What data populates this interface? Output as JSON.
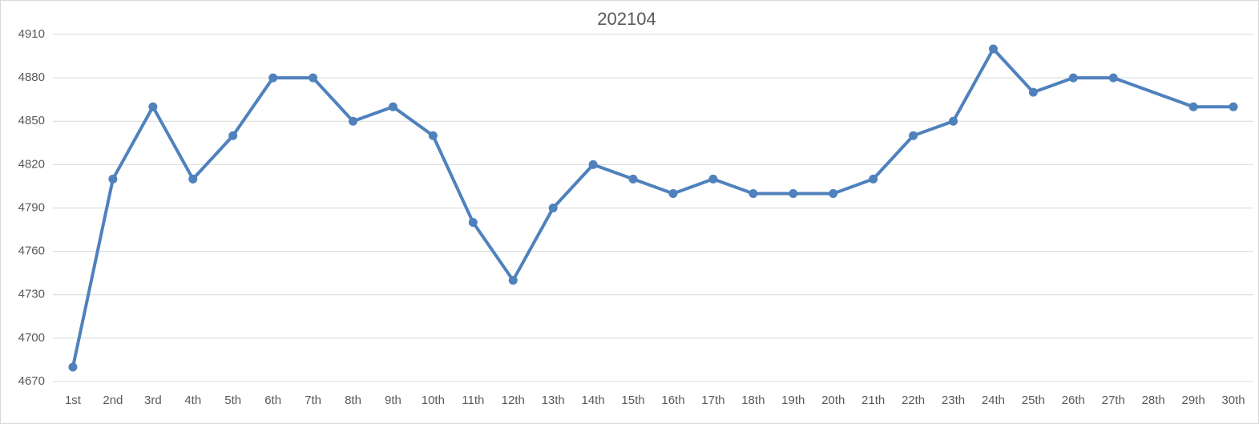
{
  "chart_data": {
    "type": "line",
    "title": "202104",
    "categories": [
      "1st",
      "2nd",
      "3rd",
      "4th",
      "5th",
      "6th",
      "7th",
      "8th",
      "9th",
      "10th",
      "11th",
      "12th",
      "13th",
      "14th",
      "15th",
      "16th",
      "17th",
      "18th",
      "19th",
      "20th",
      "21th",
      "22th",
      "23th",
      "24th",
      "25th",
      "26th",
      "27th",
      "28th",
      "29th",
      "30th"
    ],
    "series": [
      {
        "color": "#4f81bd",
        "values": [
          4680,
          4810,
          4860,
          4810,
          4840,
          4880,
          4880,
          4850,
          4860,
          4840,
          4780,
          4740,
          4790,
          4820,
          4810,
          4800,
          4810,
          4800,
          4800,
          4800,
          4810,
          4840,
          4850,
          4900,
          4870,
          4880,
          4880,
          null,
          4860,
          4860
        ]
      }
    ],
    "ylim": [
      4670,
      4910
    ],
    "yticks": [
      4670,
      4700,
      4730,
      4760,
      4790,
      4820,
      4850,
      4880,
      4910
    ],
    "grid": true,
    "connect_gaps": true
  }
}
